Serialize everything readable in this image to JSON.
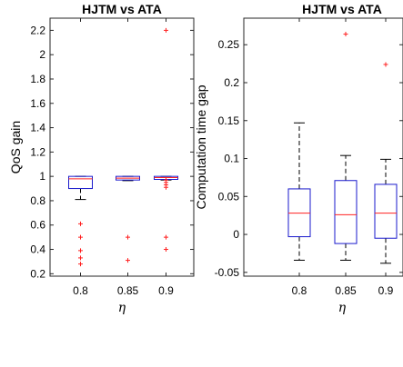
{
  "colors": {
    "box": "#1a1acc",
    "median": "#ff2020",
    "whisker": "#000000",
    "outlier": "#ff2020"
  },
  "chart_data": [
    {
      "type": "boxplot",
      "title": "HJTM vs ATA",
      "xlabel": "η",
      "ylabel": "QoS gain",
      "categories": [
        "0.8",
        "0.85",
        "0.9"
      ],
      "ylim": [
        0.18,
        2.3
      ],
      "yticks": [
        0.2,
        0.4,
        0.6,
        0.8,
        1,
        1.2,
        1.4,
        1.6,
        1.8,
        2,
        2.2
      ],
      "ytick_labels": [
        "0.2",
        "0.4",
        "0.6",
        "0.8",
        "1",
        "1.2",
        "1.4",
        "1.6",
        "1.8",
        "2",
        "2.2"
      ],
      "boxes": [
        {
          "whisker_low": 0.81,
          "q1": 0.9,
          "median": 0.98,
          "q3": 1.0,
          "whisker_high": 1.0,
          "outliers": [
            0.61,
            0.5,
            0.39,
            0.33,
            0.28
          ]
        },
        {
          "whisker_low": 0.965,
          "q1": 0.97,
          "median": 0.985,
          "q3": 1.0,
          "whisker_high": 1.0,
          "outliers": [
            0.5,
            0.31
          ]
        },
        {
          "whisker_low": 0.97,
          "q1": 0.975,
          "median": 0.99,
          "q3": 1.0,
          "whisker_high": 1.0,
          "outliers": [
            2.2,
            0.97,
            0.95,
            0.93,
            0.91,
            0.5,
            0.4
          ]
        }
      ]
    },
    {
      "type": "boxplot",
      "title": "HJTM vs ATA",
      "xlabel": "η",
      "ylabel": "Computation time gap",
      "categories": [
        "0.8",
        "0.85",
        "0.9"
      ],
      "ylim": [
        -0.055,
        0.285
      ],
      "yticks": [
        -0.05,
        0,
        0.05,
        0.1,
        0.15,
        0.2,
        0.25
      ],
      "ytick_labels": [
        "-0.05",
        "0",
        "0.05",
        "0.1",
        "0.15",
        "0.2",
        "0.25"
      ],
      "boxes": [
        {
          "whisker_low": -0.034,
          "q1": -0.003,
          "median": 0.028,
          "q3": 0.06,
          "whisker_high": 0.147,
          "outliers": []
        },
        {
          "whisker_low": -0.034,
          "q1": -0.012,
          "median": 0.026,
          "q3": 0.071,
          "whisker_high": 0.104,
          "outliers": [
            0.264
          ]
        },
        {
          "whisker_low": -0.038,
          "q1": -0.005,
          "median": 0.028,
          "q3": 0.066,
          "whisker_high": 0.099,
          "outliers": [
            0.224
          ]
        }
      ]
    }
  ]
}
